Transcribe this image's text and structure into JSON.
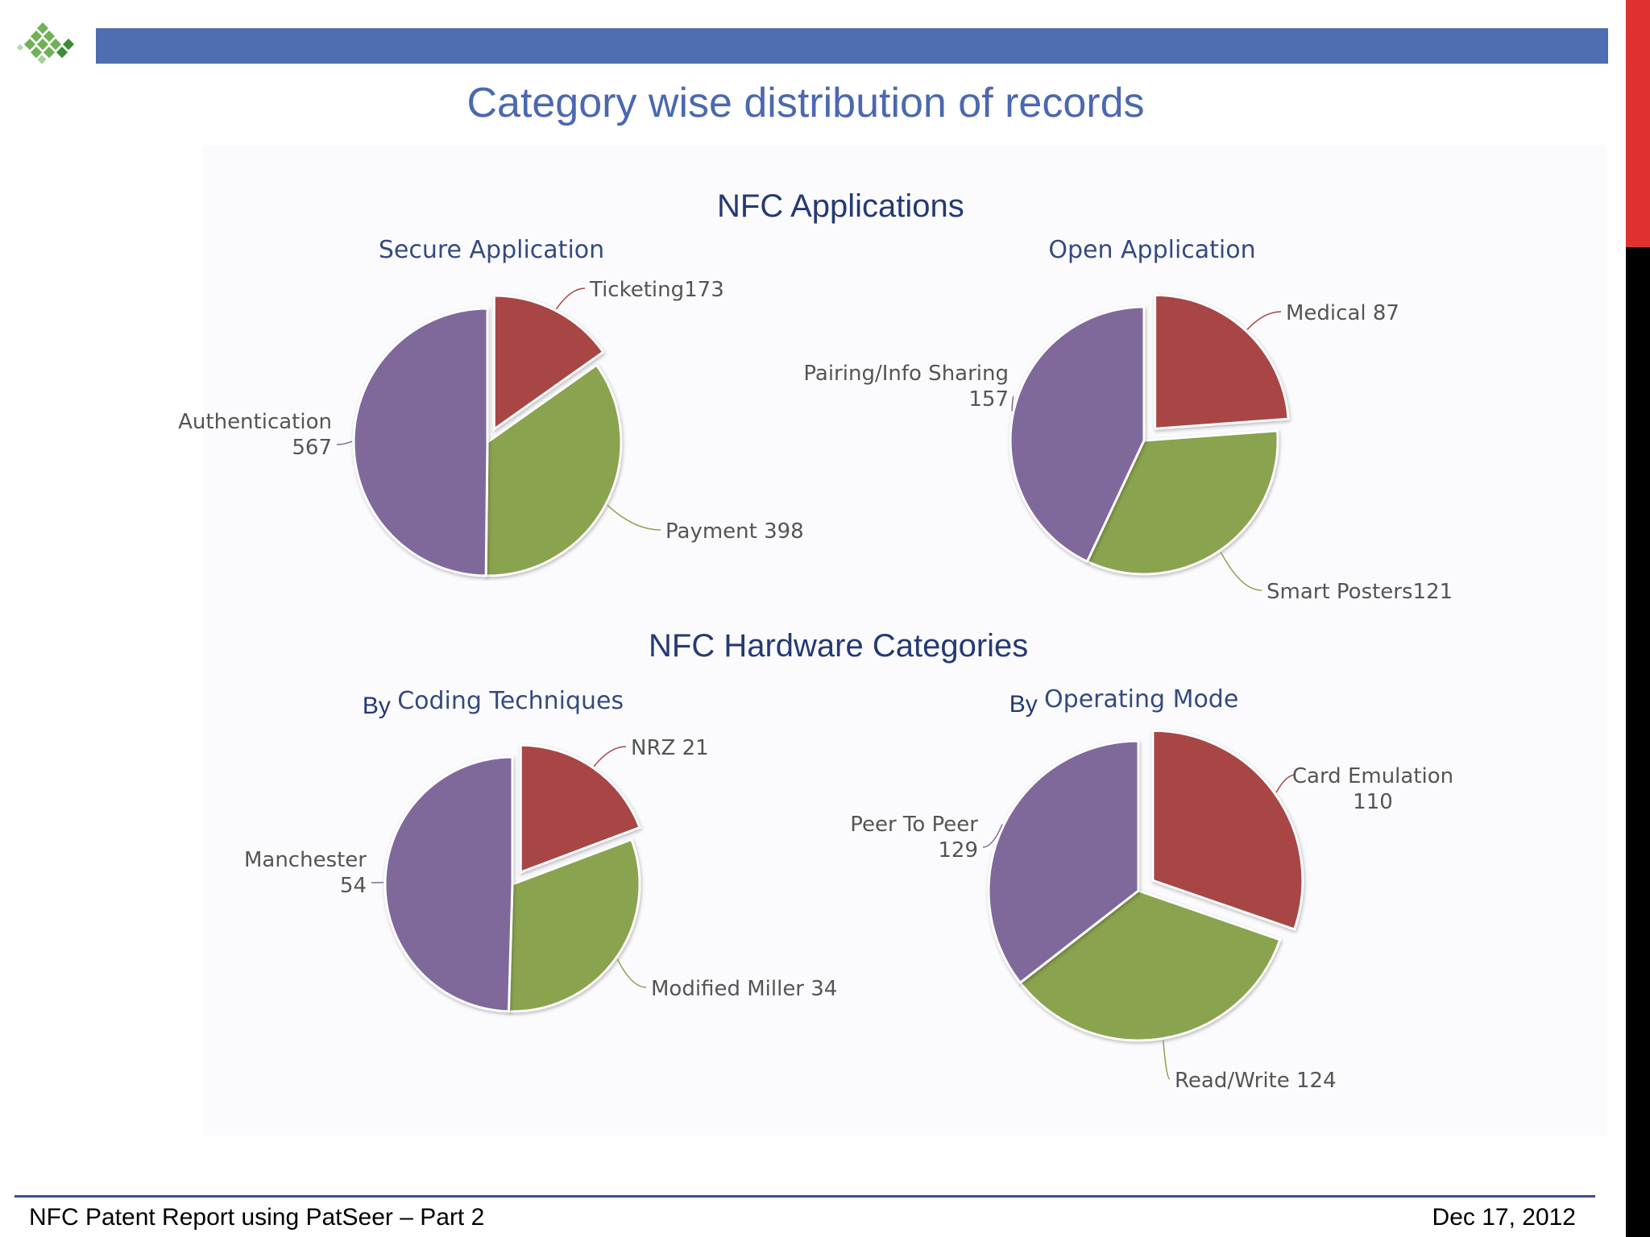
{
  "slide": {
    "title": "Category wise distribution of records",
    "footer_left": "NFC Patent Report using PatSeer – Part 2",
    "footer_right": "Dec 17, 2012"
  },
  "sections": {
    "applications": "NFC Applications",
    "hardware": "NFC Hardware Categories"
  },
  "colors": {
    "red": "#a84646",
    "green": "#8aa34e",
    "purple": "#7f699b",
    "brand_bar": "#4f6db0",
    "title": "#4b68b0"
  },
  "chart_data": [
    {
      "type": "pie",
      "title": "Secure Application",
      "slices": [
        {
          "label": "Ticketing",
          "value": 173,
          "color": "red",
          "exploded": true,
          "label_lines": [
            "Ticketing173"
          ]
        },
        {
          "label": "Payment",
          "value": 398,
          "color": "green",
          "label_lines": [
            "Payment 398"
          ]
        },
        {
          "label": "Authentication",
          "value": 567,
          "color": "purple",
          "label_lines": [
            "Authentication",
            "567"
          ]
        }
      ]
    },
    {
      "type": "pie",
      "title": "Open Application",
      "slices": [
        {
          "label": "Medical",
          "value": 87,
          "color": "red",
          "exploded": true,
          "label_lines": [
            "Medical 87"
          ]
        },
        {
          "label": "Smart Posters",
          "value": 121,
          "color": "green",
          "label_lines": [
            "Smart Posters121"
          ]
        },
        {
          "label": "Pairing/Info Sharing",
          "value": 157,
          "color": "purple",
          "label_lines": [
            "Pairing/Info Sharing",
            "157"
          ]
        }
      ]
    },
    {
      "type": "pie",
      "title_prefix": "By",
      "title": "Coding Techniques",
      "slices": [
        {
          "label": "NRZ",
          "value": 21,
          "color": "red",
          "exploded": true,
          "label_lines": [
            "NRZ 21"
          ]
        },
        {
          "label": "Modified Miller",
          "value": 34,
          "color": "green",
          "label_lines": [
            "Modified Miller 34"
          ]
        },
        {
          "label": "Manchester",
          "value": 54,
          "color": "purple",
          "label_lines": [
            "Manchester",
            "54"
          ]
        }
      ]
    },
    {
      "type": "pie",
      "title_prefix": "By",
      "title": "Operating Mode",
      "slices": [
        {
          "label": "Card Emulation",
          "value": 110,
          "color": "red",
          "exploded": true,
          "label_lines": [
            "Card Emulation",
            "110"
          ]
        },
        {
          "label": "Read/Write",
          "value": 124,
          "color": "green",
          "label_lines": [
            "Read/Write 124"
          ]
        },
        {
          "label": "Peer To Peer",
          "value": 129,
          "color": "purple",
          "label_lines": [
            "Peer To Peer",
            "129"
          ]
        }
      ]
    }
  ]
}
